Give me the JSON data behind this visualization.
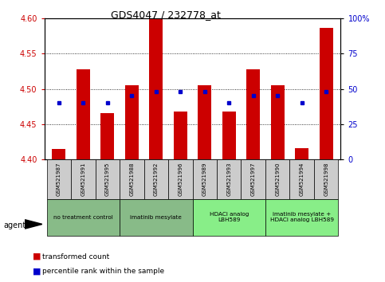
{
  "title": "GDS4047 / 232778_at",
  "samples": [
    "GSM521987",
    "GSM521991",
    "GSM521995",
    "GSM521988",
    "GSM521992",
    "GSM521996",
    "GSM521989",
    "GSM521993",
    "GSM521997",
    "GSM521990",
    "GSM521994",
    "GSM521998"
  ],
  "transformed_count": [
    4.415,
    4.528,
    4.466,
    4.505,
    4.6,
    4.468,
    4.505,
    4.468,
    4.528,
    4.505,
    4.416,
    4.587
  ],
  "percentile_rank": [
    40,
    40,
    40,
    45,
    48,
    48,
    48,
    40,
    45,
    45,
    40,
    48
  ],
  "ylim": [
    4.4,
    4.6
  ],
  "yticks_left": [
    4.4,
    4.45,
    4.5,
    4.55,
    4.6
  ],
  "yticks_right": [
    0,
    25,
    50,
    75,
    100
  ],
  "bar_color": "#cc0000",
  "dot_color": "#0000cc",
  "tick_color_left": "#cc0000",
  "tick_color_right": "#0000cc",
  "groups": [
    {
      "label": "no treatment control",
      "start": 0,
      "end": 3,
      "bg": "#88bb88"
    },
    {
      "label": "imatinib mesylate",
      "start": 3,
      "end": 6,
      "bg": "#88bb88"
    },
    {
      "label": "HDACi analog\nLBH589",
      "start": 6,
      "end": 9,
      "bg": "#88ee88"
    },
    {
      "label": "imatinib mesylate +\nHDACi analog LBH589",
      "start": 9,
      "end": 12,
      "bg": "#88ee88"
    }
  ],
  "bar_width": 0.55,
  "sample_box_color": "#cccccc",
  "sample_box_edge": "#000000"
}
